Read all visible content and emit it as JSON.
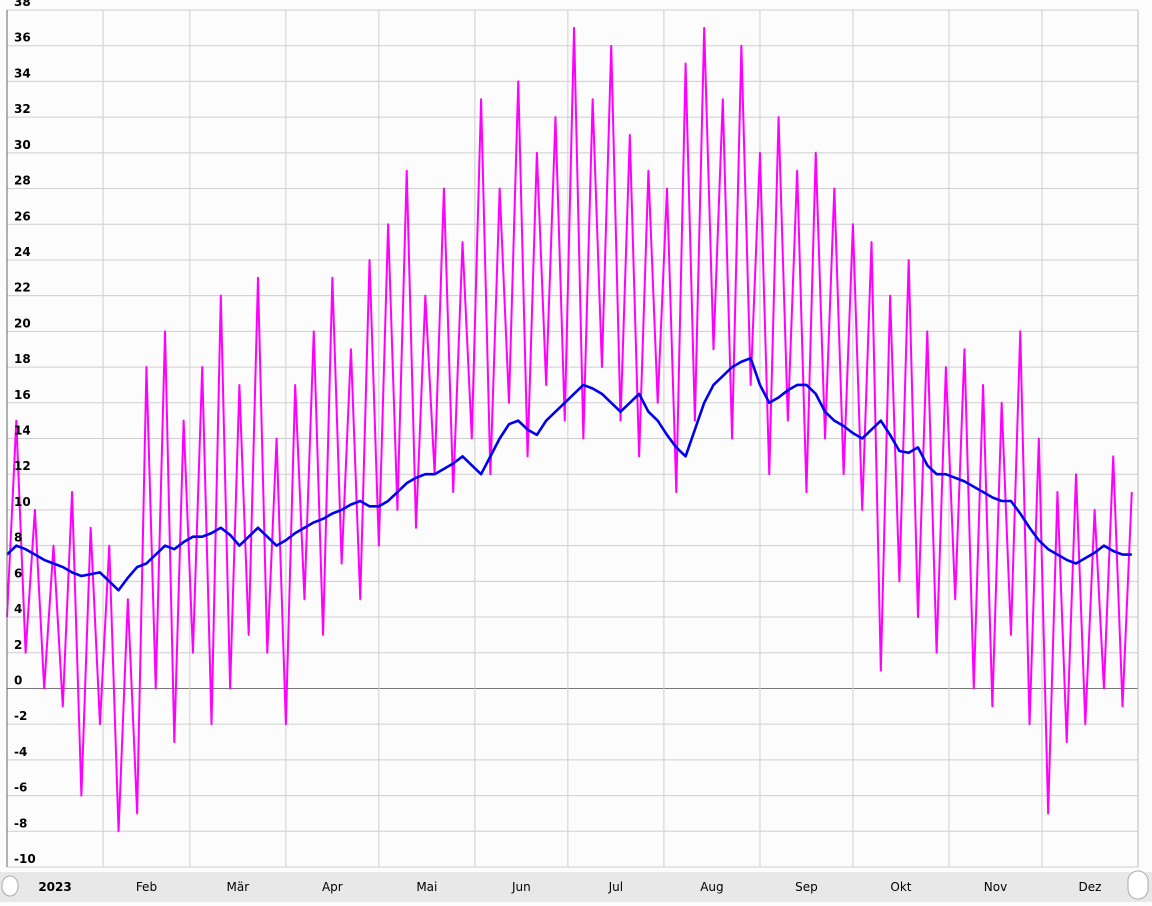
{
  "chart_data": {
    "type": "line",
    "xlim": [
      0,
      365
    ],
    "xticks": [
      {
        "value": 0,
        "label": "2023"
      },
      {
        "value": 31,
        "label": "Feb"
      },
      {
        "value": 59,
        "label": "Mär"
      },
      {
        "value": 90,
        "label": "Apr"
      },
      {
        "value": 120,
        "label": "Mai"
      },
      {
        "value": 151,
        "label": "Jun"
      },
      {
        "value": 181,
        "label": "Jul"
      },
      {
        "value": 212,
        "label": "Aug"
      },
      {
        "value": 243,
        "label": "Sep"
      },
      {
        "value": 273,
        "label": "Okt"
      },
      {
        "value": 304,
        "label": "Nov"
      },
      {
        "value": 334,
        "label": "Dez"
      }
    ],
    "ylim": [
      -10,
      38
    ],
    "yticks": [
      -10,
      -8,
      -6,
      -4,
      -2,
      0,
      2,
      4,
      6,
      8,
      10,
      12,
      14,
      16,
      18,
      20,
      22,
      24,
      26,
      28,
      30,
      32,
      34,
      36,
      38
    ],
    "grid": true,
    "x": [
      0,
      3,
      6,
      9,
      12,
      15,
      18,
      21,
      24,
      27,
      30,
      33,
      36,
      39,
      42,
      45,
      48,
      51,
      54,
      57,
      60,
      63,
      66,
      69,
      72,
      75,
      78,
      81,
      84,
      87,
      90,
      93,
      96,
      99,
      102,
      105,
      108,
      111,
      114,
      117,
      120,
      123,
      126,
      129,
      132,
      135,
      138,
      141,
      144,
      147,
      150,
      153,
      156,
      159,
      162,
      165,
      168,
      171,
      174,
      177,
      180,
      183,
      186,
      189,
      192,
      195,
      198,
      201,
      204,
      207,
      210,
      213,
      216,
      219,
      222,
      225,
      228,
      231,
      234,
      237,
      240,
      243,
      246,
      249,
      252,
      255,
      258,
      261,
      264,
      267,
      270,
      273,
      276,
      279,
      282,
      285,
      288,
      291,
      294,
      297,
      300,
      303,
      306,
      309,
      312,
      315,
      318,
      321,
      324,
      327,
      330,
      333,
      336,
      339,
      342,
      345,
      348,
      351,
      354,
      357,
      360,
      363
    ],
    "series": [
      {
        "color": "#ff00ff",
        "values": [
          4,
          15,
          2,
          10,
          0,
          8,
          -1,
          11,
          -6,
          9,
          -2,
          8,
          -8,
          5,
          -7,
          18,
          0,
          20,
          -3,
          15,
          2,
          18,
          -2,
          22,
          0,
          17,
          3,
          23,
          2,
          14,
          -2,
          17,
          5,
          20,
          3,
          23,
          7,
          19,
          5,
          24,
          8,
          26,
          10,
          29,
          9,
          22,
          12,
          28,
          11,
          25,
          14,
          33,
          12,
          28,
          16,
          34,
          13,
          30,
          17,
          32,
          15,
          37,
          14,
          33,
          18,
          36,
          15,
          31,
          13,
          29,
          16,
          28,
          11,
          35,
          15,
          37,
          19,
          33,
          14,
          36,
          17,
          30,
          12,
          32,
          15,
          29,
          11,
          30,
          14,
          28,
          12,
          26,
          10,
          25,
          1,
          22,
          6,
          24,
          4,
          20,
          2,
          18,
          5,
          19,
          0,
          17,
          -1,
          16,
          3,
          20,
          -2,
          14,
          -7,
          11,
          -3,
          12,
          -2,
          10,
          0,
          13,
          -1,
          11
        ]
      },
      {
        "color": "#0000ee",
        "values": [
          7.5,
          8,
          7.8,
          7.5,
          7.2,
          7,
          6.8,
          6.5,
          6.3,
          6.4,
          6.5,
          6,
          5.5,
          6.2,
          6.8,
          7,
          7.5,
          8,
          7.8,
          8.2,
          8.5,
          8.5,
          8.7,
          9,
          8.6,
          8,
          8.5,
          9,
          8.5,
          8,
          8.3,
          8.7,
          9,
          9.3,
          9.5,
          9.8,
          10,
          10.3,
          10.5,
          10.2,
          10.2,
          10.5,
          11,
          11.5,
          11.8,
          12,
          12,
          12.3,
          12.6,
          13,
          12.5,
          12,
          13,
          14,
          14.8,
          15,
          14.5,
          14.2,
          15,
          15.5,
          16,
          16.5,
          17,
          16.8,
          16.5,
          16,
          15.5,
          16,
          16.5,
          15.5,
          15,
          14.2,
          13.5,
          13,
          14.5,
          16,
          17,
          17.5,
          18,
          18.3,
          18.5,
          17,
          16,
          16.3,
          16.7,
          17,
          17,
          16.5,
          15.5,
          15,
          14.7,
          14.3,
          14,
          14.5,
          15,
          14.2,
          13.3,
          13.2,
          13.5,
          12.5,
          12,
          12,
          11.8,
          11.6,
          11.3,
          11,
          10.7,
          10.5,
          10.5,
          9.8,
          9,
          8.3,
          7.8,
          7.5,
          7.2,
          7,
          7.3,
          7.6,
          8,
          7.7,
          7.5,
          7.5
        ]
      }
    ]
  }
}
